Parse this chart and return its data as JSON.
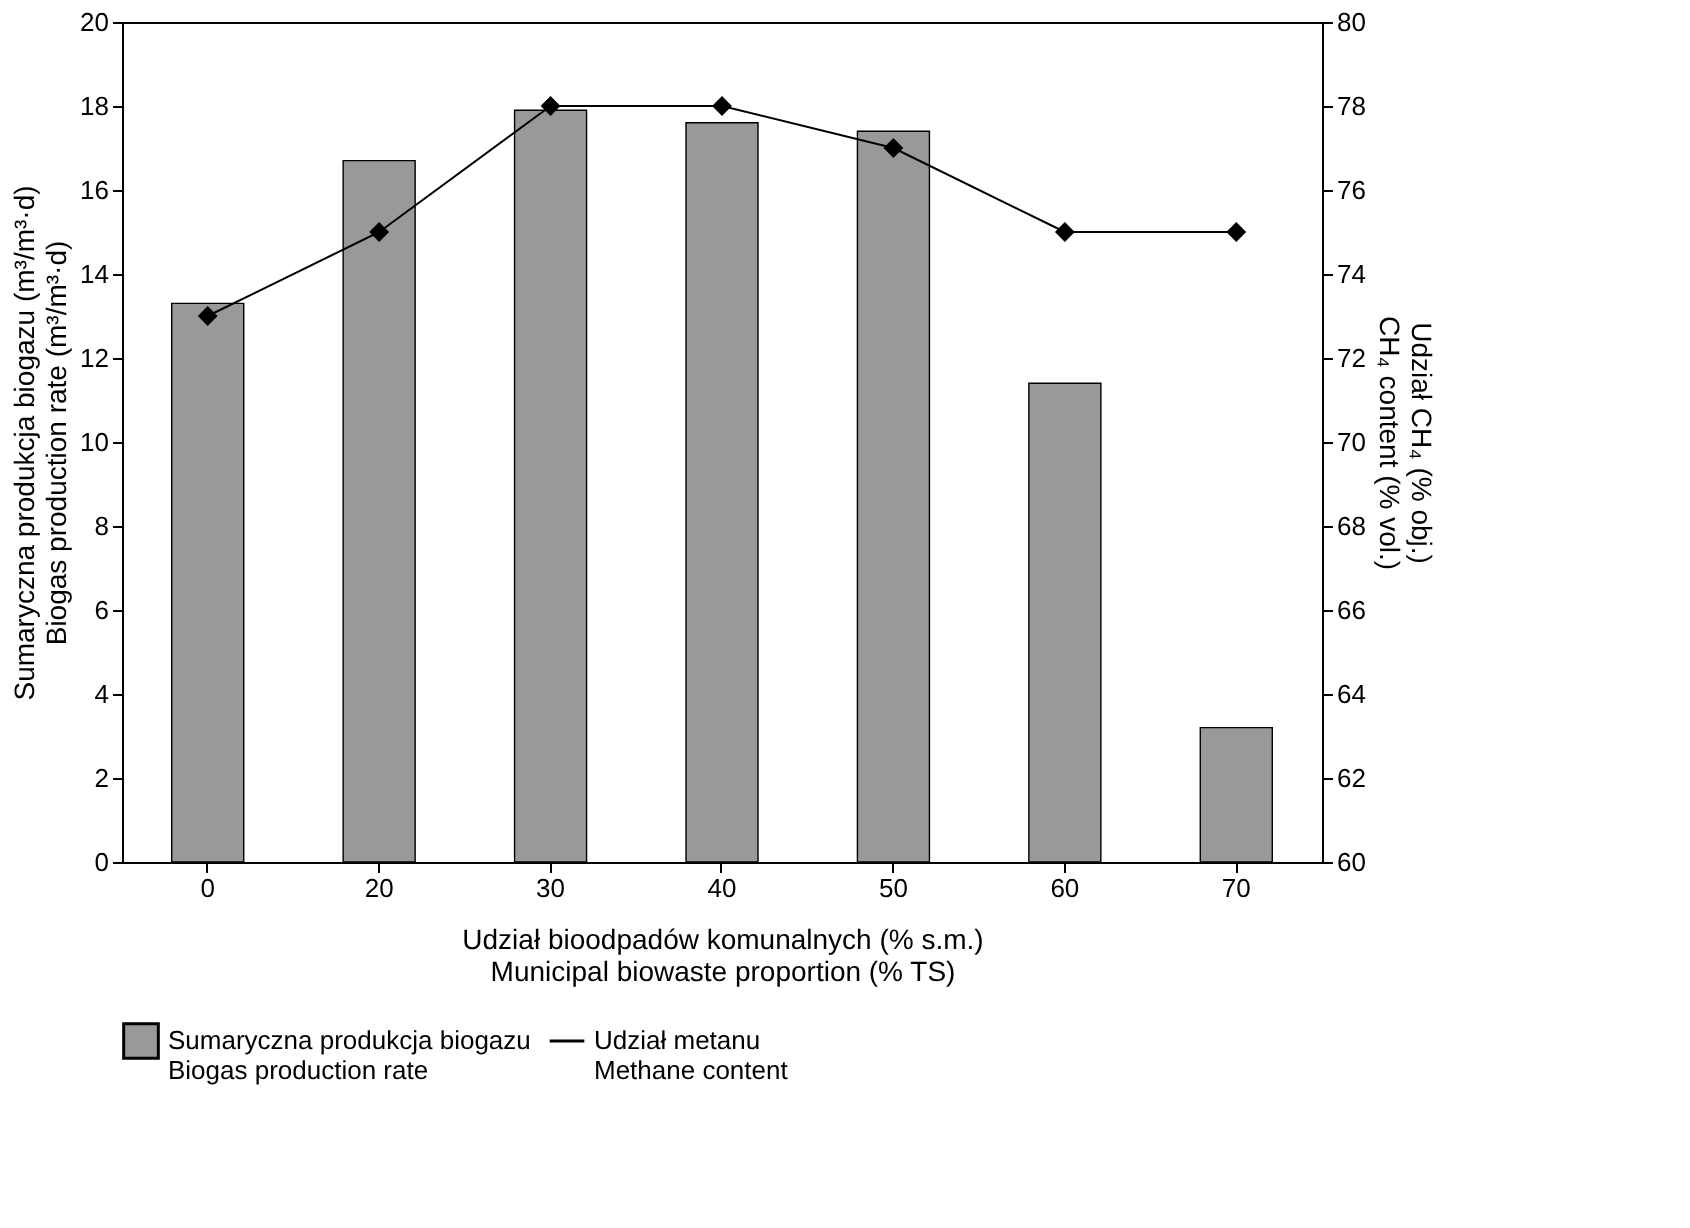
{
  "chart_data": {
    "type": "bar",
    "categories": [
      "0",
      "20",
      "30",
      "40",
      "50",
      "60",
      "70"
    ],
    "xlabel": "Udział bioodpadów komunalnych (% s.m.)\nMunicipal biowaste proportion (% TS)",
    "ylabel": "Sumaryczna produkcja biogazu (m³/m³·d)\nBiogas production rate (m³/m³·d)",
    "y2label": "Udział CH₄ (% obj.)\nCH₄ content (% vol.)",
    "ylim": [
      0,
      20
    ],
    "yticks": [
      0,
      2,
      4,
      6,
      8,
      10,
      12,
      14,
      16,
      18,
      20
    ],
    "y2lim": [
      60,
      80
    ],
    "y2ticks": [
      60,
      62,
      64,
      66,
      68,
      70,
      72,
      74,
      76,
      78,
      80
    ],
    "grid": false,
    "legend": "bottom",
    "series": [
      {
        "name": "Sumaryczna produkcja biogazu\nBiogas production rate",
        "color": "#999999",
        "values": [
          13.3,
          16.7,
          17.9,
          17.6,
          17.4,
          11.4,
          3.2
        ]
      },
      {
        "name": "Udział metanu\nMethane content",
        "type": "line",
        "axis": "y2",
        "color": "#000000",
        "marker": "diamond",
        "values": [
          73,
          75,
          78,
          78,
          77,
          75,
          75
        ]
      }
    ]
  }
}
